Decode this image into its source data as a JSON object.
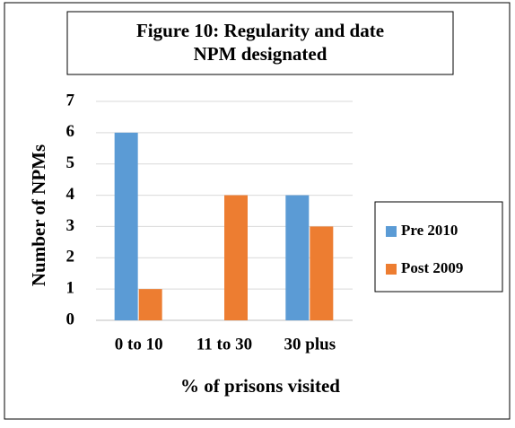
{
  "chart_data": {
    "type": "bar",
    "title": "Figure 10: Regularity and date NPM designated",
    "categories": [
      "0 to 10",
      "11 to 30",
      "30 plus"
    ],
    "series": [
      {
        "name": "Pre 2010",
        "color": "#5b9bd5",
        "values": [
          6,
          0,
          4
        ]
      },
      {
        "name": "Post 2009",
        "color": "#ed7d31",
        "values": [
          1,
          4,
          3
        ]
      }
    ],
    "x_label": "% of prisons visited",
    "y_label": "Number of NPMs",
    "ylim": [
      0,
      7
    ],
    "yticks": [
      0,
      1,
      2,
      3,
      4,
      5,
      6,
      7
    ],
    "grid": true,
    "legend": "right"
  }
}
